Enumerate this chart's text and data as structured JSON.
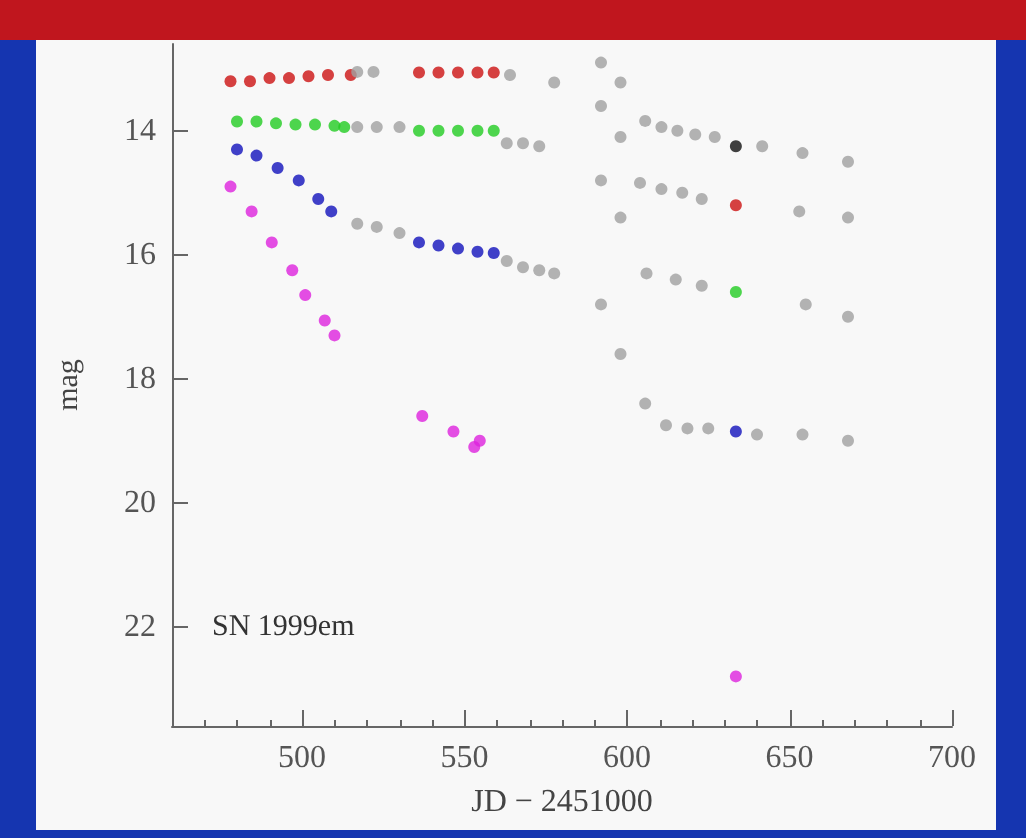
{
  "chart_data": {
    "type": "scatter",
    "xlabel": "JD − 2451000",
    "ylabel": "mag",
    "annotations": [
      "SN 1999em"
    ],
    "xlim": [
      460,
      700
    ],
    "xticks": [
      500,
      550,
      600,
      650,
      700
    ],
    "ylim": [
      23.6,
      12.6
    ],
    "yticks": [
      14,
      16,
      18,
      20,
      22
    ],
    "grid": false,
    "marker": "circle",
    "series": [
      {
        "color": "#cc1111",
        "x": [
          478,
          484,
          490,
          496,
          502,
          508,
          515,
          536,
          542,
          548,
          554,
          559,
          633.5
        ],
        "values": [
          13.2,
          13.2,
          13.15,
          13.15,
          13.12,
          13.1,
          13.1,
          13.06,
          13.06,
          13.06,
          13.06,
          13.06,
          15.2
        ]
      },
      {
        "color": "#22cc22",
        "x": [
          480,
          486,
          492,
          498,
          504,
          510,
          513,
          536,
          542,
          548,
          554,
          559,
          633.5
        ],
        "values": [
          13.85,
          13.85,
          13.88,
          13.9,
          13.9,
          13.92,
          13.94,
          14.0,
          14.0,
          14.0,
          14.0,
          14.0,
          16.6
        ]
      },
      {
        "color": "#1111bb",
        "x": [
          480,
          486,
          492.5,
          499,
          505,
          509,
          536,
          542,
          548,
          554,
          559,
          633.5
        ],
        "values": [
          14.3,
          14.4,
          14.6,
          14.8,
          15.1,
          15.3,
          15.8,
          15.85,
          15.9,
          15.95,
          15.97,
          18.85
        ]
      },
      {
        "color": "#dd22dd",
        "x": [
          478,
          484.5,
          490.7,
          497,
          501,
          507,
          510,
          537,
          546.6,
          553,
          554.7,
          633.5
        ],
        "values": [
          14.9,
          15.3,
          15.8,
          16.25,
          16.65,
          17.06,
          17.3,
          18.6,
          18.85,
          19.1,
          19.0,
          22.8
        ]
      },
      {
        "color": "#111111",
        "x": [
          633.5
        ],
        "values": [
          14.25
        ]
      },
      {
        "color": "#a0a0a0",
        "x": [
          517,
          522,
          564,
          517,
          523,
          530,
          563,
          568,
          573,
          517,
          523,
          530,
          563,
          568,
          573,
          577.6,
          592,
          598,
          592,
          598,
          605.6,
          610.6,
          615.5,
          621,
          627,
          641.6,
          654,
          668,
          604,
          610.6,
          617,
          623,
          653,
          668,
          592,
          598,
          606,
          615,
          623,
          655,
          668,
          577.6,
          592,
          598,
          605.6,
          612,
          618.6,
          625,
          640,
          654,
          668
        ],
        "values": [
          13.05,
          13.05,
          13.1,
          13.94,
          13.94,
          13.94,
          14.2,
          14.2,
          14.25,
          15.5,
          15.55,
          15.65,
          16.1,
          16.2,
          16.25,
          13.22,
          12.9,
          13.22,
          13.6,
          14.1,
          13.84,
          13.94,
          14.0,
          14.06,
          14.1,
          14.25,
          14.36,
          14.5,
          14.84,
          14.94,
          15.0,
          15.1,
          15.3,
          15.4,
          14.8,
          15.4,
          16.3,
          16.4,
          16.5,
          16.8,
          17.0,
          16.3,
          16.8,
          17.6,
          18.4,
          18.75,
          18.8,
          18.8,
          18.9,
          18.9,
          19.0
        ]
      }
    ]
  }
}
